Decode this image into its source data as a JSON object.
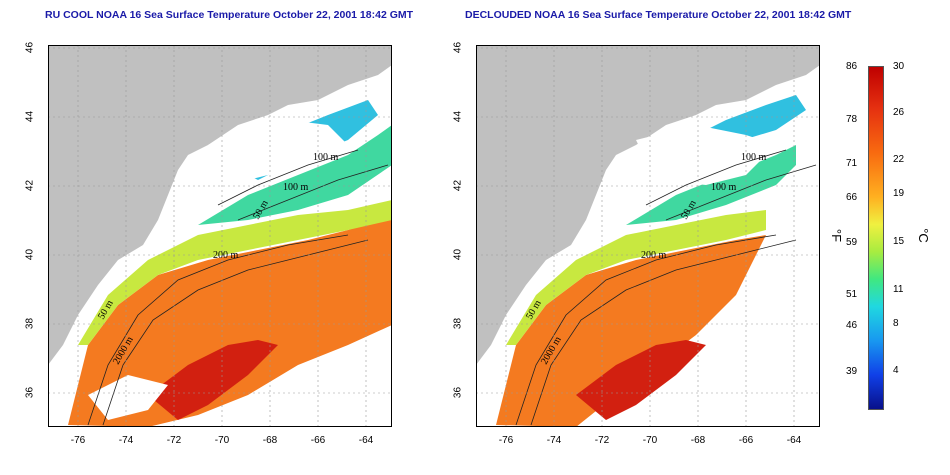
{
  "panels": [
    {
      "title": "RU COOL NOAA 16 Sea Surface Temperature October 22, 2001 18:42 GMT",
      "contour_labels": [
        "100 m",
        "100 m",
        "50 m",
        "200 m",
        "50 m",
        "2000 m"
      ]
    },
    {
      "title": "DECLOUDED NOAA 16 Sea Surface Temperature October 22, 2001 18:42 GMT",
      "contour_labels": [
        "100 m",
        "100 m",
        "50 m",
        "200 m",
        "50 m",
        "2000 m"
      ]
    }
  ],
  "axes": {
    "lat_ticks": [
      "46",
      "44",
      "42",
      "40",
      "38",
      "36"
    ],
    "lon_ticks": [
      "-76",
      "-74",
      "-72",
      "-70",
      "-68",
      "-66",
      "-64"
    ]
  },
  "colorbar": {
    "fahrenheit_ticks": [
      "86",
      "78",
      "71",
      "66",
      "59",
      "51",
      "46",
      "39"
    ],
    "celsius_ticks": [
      "30",
      "26",
      "22",
      "19",
      "15",
      "11",
      "8",
      "4"
    ],
    "fahrenheit_unit": "°F",
    "celsius_unit": "°C",
    "colors": [
      "#bf0000",
      "#f86a10",
      "#f0f040",
      "#40e880",
      "#20d8e0",
      "#1040e8",
      "#08108a"
    ]
  },
  "legend_colors": {
    "land": "#c0c0c0",
    "cloud_nodata": "#ffffff",
    "contour": "#222222",
    "grid": "#999999"
  }
}
